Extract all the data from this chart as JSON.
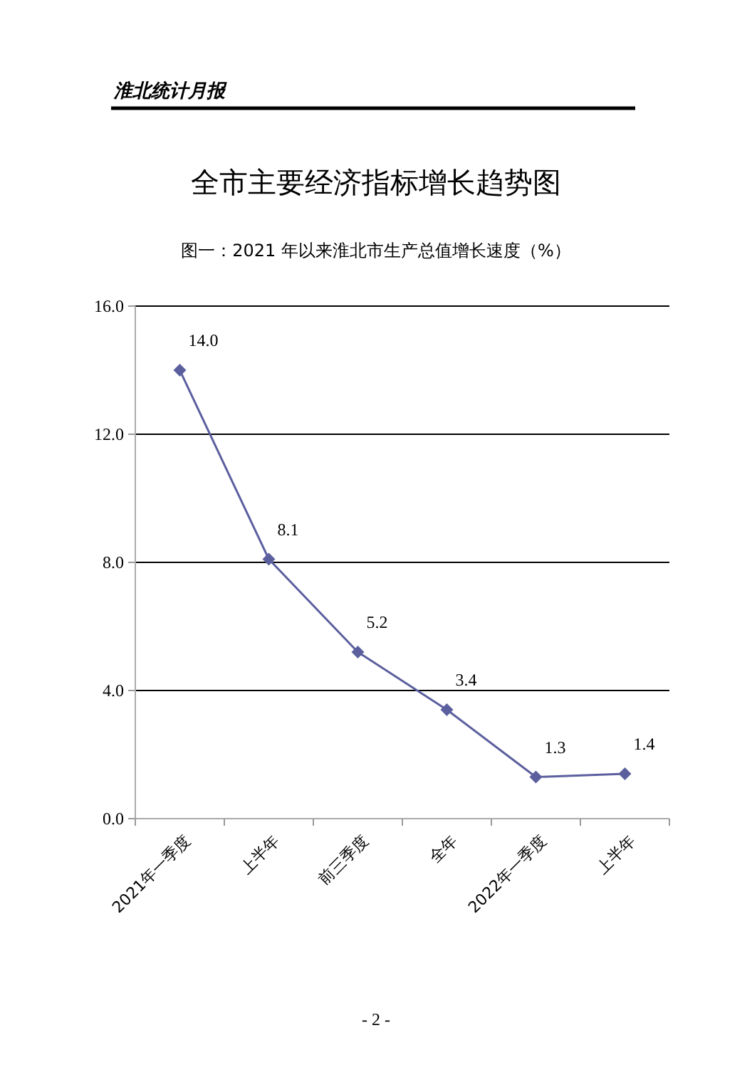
{
  "chart_data": {
    "type": "line",
    "title": "全市主要经济指标增长趋势图",
    "subtitle": "图一：2021 年以来淮北市生产总值增长速度（%）",
    "annotations": [
      "淮北统计月报",
      "- 2 -"
    ],
    "categories": [
      "2021年一季度",
      "上半年",
      "前三季度",
      "全年",
      "2022年一季度",
      "上半年"
    ],
    "series": [
      {
        "color": "#5b5f9e",
        "values": [
          14.0,
          8.1,
          5.2,
          3.4,
          1.3,
          1.4
        ],
        "value_labels": [
          "14.0",
          "8.1",
          "5.2",
          "3.4",
          "1.3",
          "1.4"
        ]
      }
    ],
    "ylim": [
      0,
      16
    ],
    "yticks": [
      {
        "value": 0,
        "label": "0.0"
      },
      {
        "value": 4,
        "label": "4.0"
      },
      {
        "value": 8,
        "label": "8.0"
      },
      {
        "value": 12,
        "label": "12.0"
      },
      {
        "value": 16,
        "label": "16.0"
      }
    ],
    "grid": "y",
    "marker": "diamond"
  }
}
